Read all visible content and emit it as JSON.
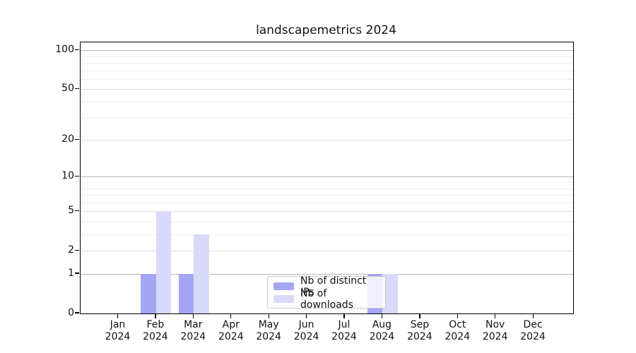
{
  "title": "landscapemetrics 2024",
  "colors": {
    "bar_distinct_ips": "#a5a5f5",
    "bar_downloads": "#d9d9f9",
    "axis": "#000000",
    "grid_decade": "#b6b6b6",
    "grid_major": "#dddddd",
    "grid_minor": "#eeeeee",
    "legend_border": "#c9c9c9"
  },
  "chart_data": {
    "type": "bar",
    "title": "landscapemetrics 2024",
    "categories": [
      "Jan",
      "Feb",
      "Mar",
      "Apr",
      "May",
      "Jun",
      "Jul",
      "Aug",
      "Sep",
      "Oct",
      "Nov",
      "Dec"
    ],
    "x_tick_second_line": "2024",
    "series": [
      {
        "name": "Nb of distinct IPs",
        "color": "#a5a5f5",
        "values": [
          0,
          1,
          1,
          0,
          0,
          0,
          0,
          1,
          0,
          0,
          0,
          0
        ]
      },
      {
        "name": "Nb of downloads",
        "color": "#d9d9f9",
        "values": [
          0,
          5,
          3,
          0,
          0,
          0,
          0,
          1,
          0,
          0,
          0,
          0
        ]
      }
    ],
    "xlabel": "",
    "ylabel": "",
    "y_scale": "log1p",
    "y_ticks_major": [
      0,
      1,
      2,
      5,
      10,
      20,
      50,
      100
    ],
    "y_ticks_minor": [
      3,
      4,
      6,
      7,
      8,
      9,
      30,
      40,
      60,
      70,
      80,
      90
    ],
    "y_decade_lines": [
      1,
      10,
      100
    ],
    "ylim": [
      0,
      115
    ],
    "grid": true,
    "legend_position": "lower-center-inside"
  }
}
